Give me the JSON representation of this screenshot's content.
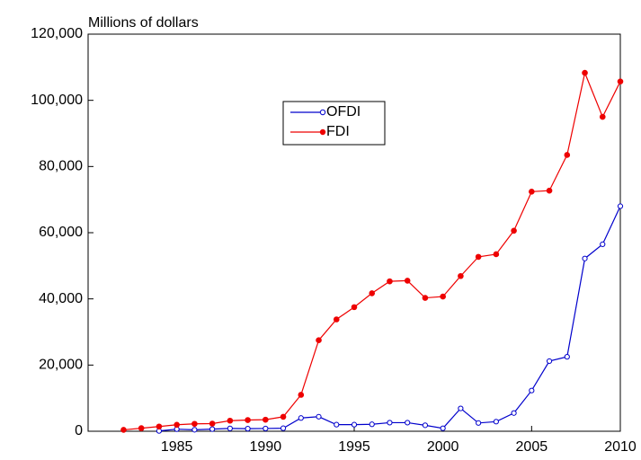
{
  "chart_data": {
    "type": "line",
    "y_axis_label": "Millions of dollars",
    "x": [
      1982,
      1983,
      1984,
      1985,
      1986,
      1987,
      1988,
      1989,
      1990,
      1991,
      1992,
      1993,
      1994,
      1995,
      1996,
      1997,
      1998,
      1999,
      2000,
      2001,
      2002,
      2003,
      2004,
      2005,
      2006,
      2007,
      2008,
      2009,
      2010
    ],
    "series": [
      {
        "name": "OFDI",
        "color": "#0000cc",
        "marker": "open-circle",
        "values": [
          null,
          null,
          100,
          630,
          450,
          650,
          850,
          780,
          830,
          910,
          4000,
          4400,
          2000,
          2000,
          2100,
          2600,
          2600,
          1800,
          900,
          6900,
          2500,
          2900,
          5500,
          12300,
          21200,
          22500,
          52200,
          56500,
          68000
        ]
      },
      {
        "name": "FDI",
        "color": "#ee0000",
        "marker": "filled-circle",
        "values": [
          430,
          920,
          1420,
          1960,
          2240,
          2310,
          3190,
          3390,
          3490,
          4370,
          11000,
          27500,
          33800,
          37500,
          41700,
          45300,
          45500,
          40300,
          40700,
          46900,
          52700,
          53500,
          60600,
          72400,
          72700,
          83500,
          108300,
          95000,
          105700
        ]
      }
    ],
    "xlim": [
      1980,
      2010
    ],
    "xticks": [
      1985,
      1990,
      1995,
      2000,
      2005,
      2010
    ],
    "ylim": [
      0,
      120000
    ],
    "yticks": [
      0,
      {
        "value": 20000,
        "label": "20,000"
      },
      {
        "value": 40000,
        "label": "40,000"
      },
      {
        "value": 60000,
        "label": "60,000"
      },
      {
        "value": 80000,
        "label": "80,000"
      },
      {
        "value": 100000,
        "label": "100,000"
      },
      {
        "value": 120000,
        "label": "120,000"
      }
    ],
    "grid": false,
    "legend": "center"
  }
}
